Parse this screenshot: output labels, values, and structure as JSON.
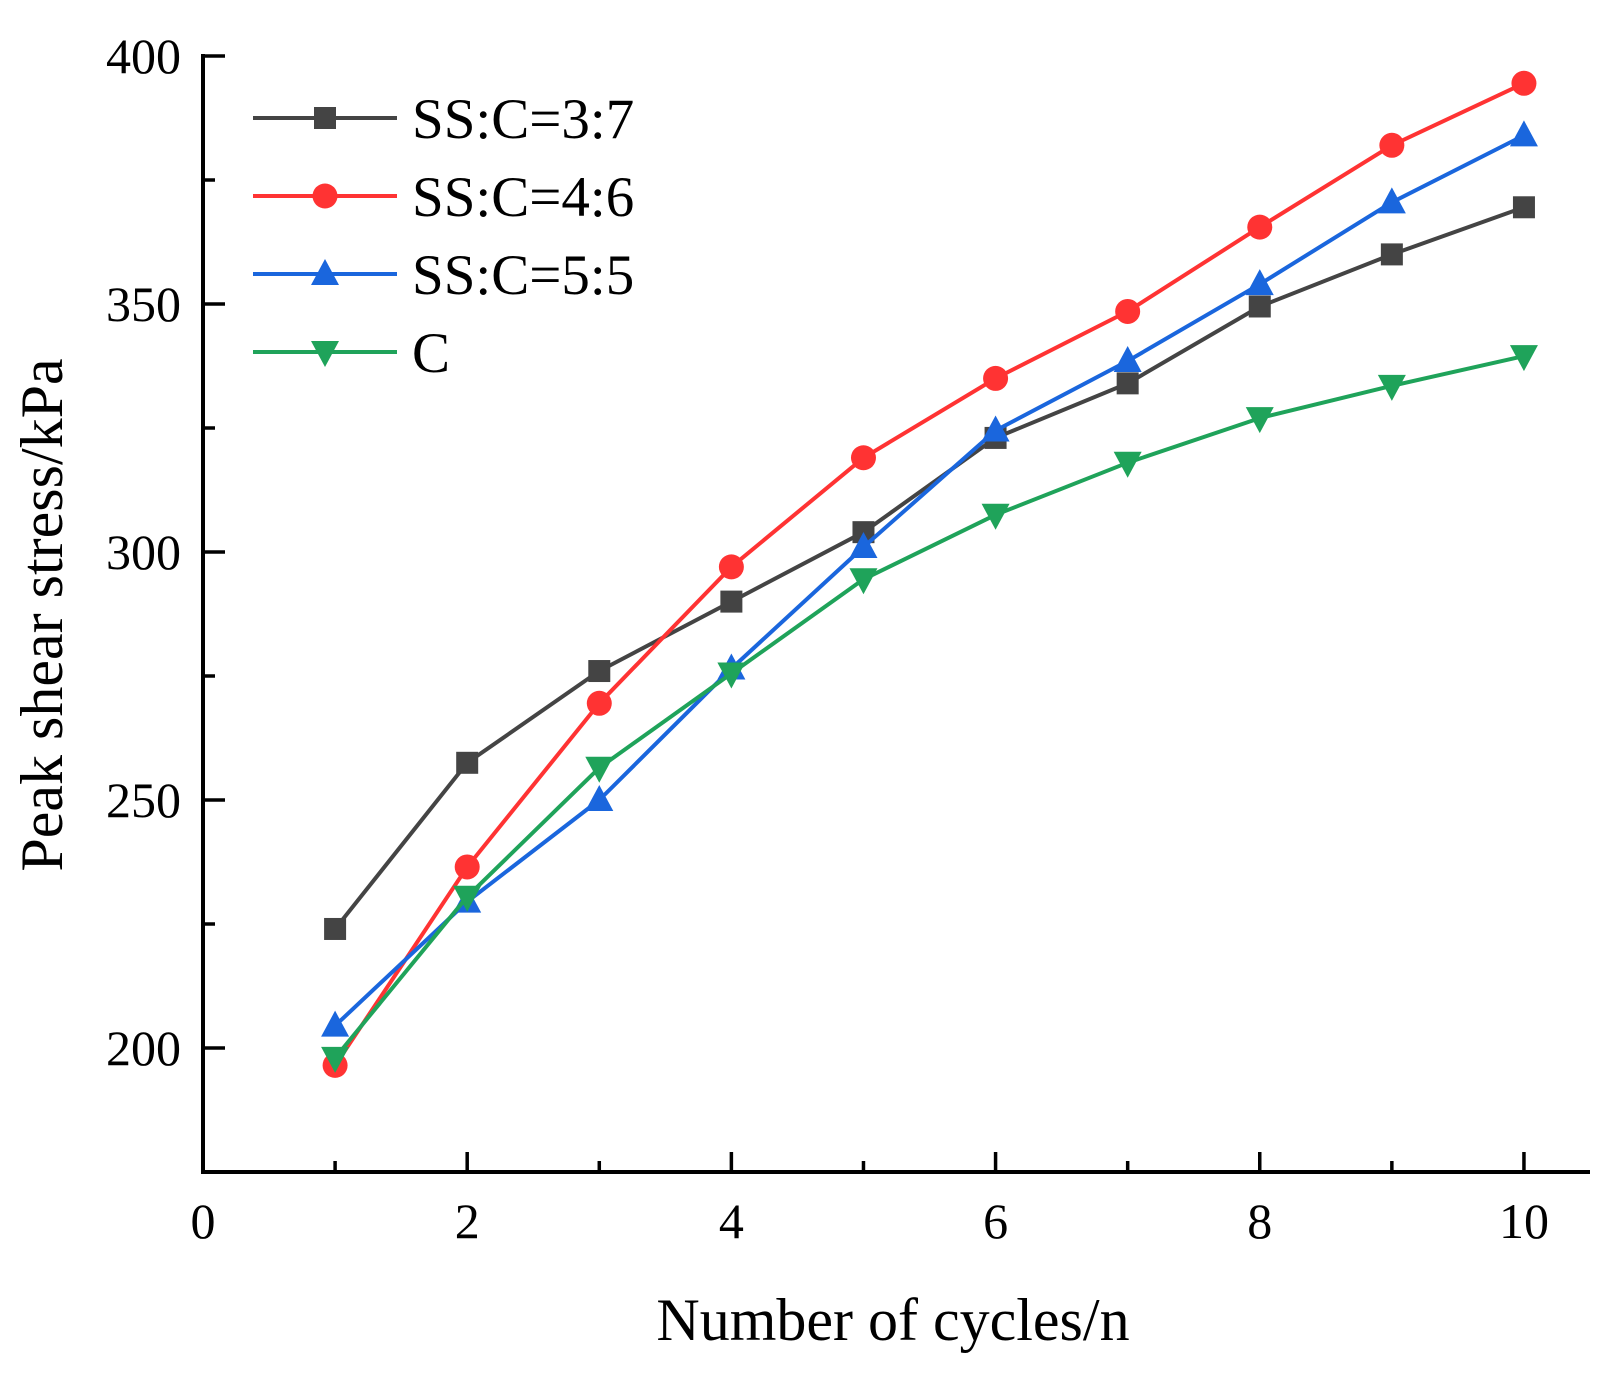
{
  "chart_data": {
    "type": "line",
    "title": "",
    "xlabel": "Number of cycles/n",
    "ylabel": "Peak shear stress/kPa",
    "xlim": [
      0,
      10.5
    ],
    "ylim": [
      175,
      400
    ],
    "x_ticks": [
      0,
      1,
      2,
      3,
      4,
      5,
      6,
      7,
      8,
      9,
      10
    ],
    "x_tick_labels": [
      "0",
      "",
      "2",
      "",
      "4",
      "",
      "6",
      "",
      "8",
      "",
      "10"
    ],
    "y_ticks": [
      175,
      200,
      225,
      250,
      275,
      300,
      325,
      350,
      375,
      400
    ],
    "y_tick_labels": [
      "",
      "200",
      "",
      "250",
      "",
      "300",
      "",
      "350",
      "",
      "400"
    ],
    "grid": false,
    "legend_position": "top-left",
    "x": [
      1,
      2,
      3,
      4,
      5,
      6,
      7,
      8,
      9,
      10
    ],
    "series": [
      {
        "name": "SS:C=3:7",
        "color": "#444444",
        "marker": "square",
        "values": [
          224,
          257.5,
          276,
          290,
          304,
          323,
          334,
          349.5,
          360,
          369.5
        ]
      },
      {
        "name": "SS:C=4:6",
        "color": "#ff3333",
        "marker": "circle",
        "values": [
          196.5,
          236.5,
          269.5,
          297,
          319,
          335,
          348.5,
          365.5,
          382,
          394.5
        ]
      },
      {
        "name": "SS:C=5:5",
        "color": "#1a66dd",
        "marker": "triangle-up",
        "values": [
          204.5,
          229.5,
          250,
          276.5,
          301,
          324.5,
          338.5,
          354,
          370.5,
          384
        ]
      },
      {
        "name": "C",
        "color": "#1fa35a",
        "marker": "triangle-down",
        "values": [
          198,
          230.5,
          256.5,
          275.5,
          294.5,
          307.5,
          318,
          327,
          333.5,
          339.5
        ]
      }
    ]
  }
}
